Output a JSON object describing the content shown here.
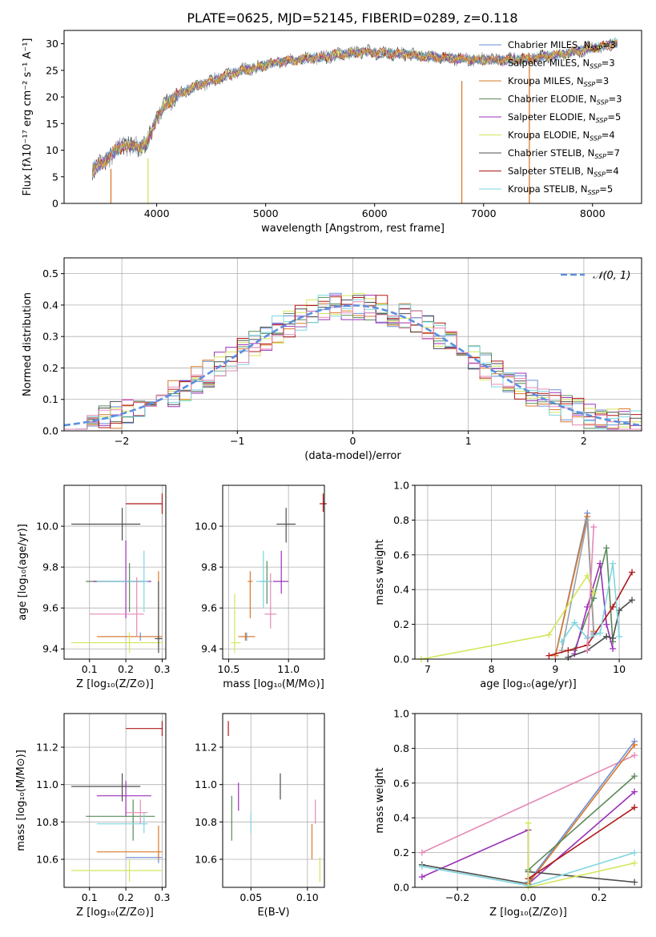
{
  "figure": {
    "title": "PLATE=0625, MJD=52145, FIBERID=0289, z=0.118"
  },
  "colors": {
    "Chabrier MILES": "#6b8fd6",
    "Salpeter MILES": "#9aa0a6",
    "Kroupa MILES": "#d9782a",
    "Chabrier ELODIE": "#5a8a5a",
    "Salpeter ELODIE": "#9b30b8",
    "Kroupa ELODIE": "#d4e65a",
    "Chabrier STELIB": "#4d4d4d",
    "Salpeter STELIB": "#b01818",
    "Kroupa STELIB": "#7fd6e0",
    "Pink": "#e68ab8",
    "Normal": "#5b8fe0"
  },
  "chart_data": [
    {
      "id": "spectrum",
      "type": "line",
      "title": "PLATE=0625, MJD=52145, FIBERID=0289, z=0.118",
      "xlabel": "wavelength [Angstrom, rest frame]",
      "ylabel": "Flux [fλ10⁻¹⁷ erg cm⁻² s⁻¹ A⁻¹]",
      "xlim": [
        3150,
        8450
      ],
      "ylim": [
        0,
        32.5
      ],
      "xticks": [
        "4000",
        "5000",
        "6000",
        "7000",
        "8000"
      ],
      "yticks": [
        "0",
        "5",
        "10",
        "15",
        "20",
        "25",
        "30"
      ],
      "continuum": {
        "x": [
          3410,
          3500,
          3600,
          3700,
          3800,
          3900,
          3950,
          4000,
          4100,
          4200,
          4300,
          4500,
          4700,
          4900,
          5100,
          5300,
          5500,
          5700,
          5900,
          6100,
          6300,
          6500,
          6700,
          6900,
          7100,
          7300,
          7500,
          7700,
          7900,
          8100,
          8230
        ],
        "y": [
          6.5,
          7.5,
          9.5,
          11,
          10.5,
          11,
          13,
          16,
          19,
          20.5,
          21.5,
          23,
          24.5,
          25.5,
          26.5,
          27,
          27.5,
          28,
          28.5,
          28.2,
          28,
          27.5,
          27.3,
          27,
          27,
          27,
          27.5,
          28,
          28.8,
          29.5,
          30.3
        ]
      },
      "series": [
        {
          "name": "Chabrier MILES, N_SSP=3",
          "label_main": "Chabrier MILES, N",
          "label_sub": "SSP",
          "label_tail": "=3"
        },
        {
          "name": "Salpeter MILES, N_SSP=3",
          "label_main": "Salpeter MILES, N",
          "label_sub": "SSP",
          "label_tail": "=3"
        },
        {
          "name": "Kroupa MILES, N_SSP=3",
          "label_main": "Kroupa MILES, N",
          "label_sub": "SSP",
          "label_tail": "=3"
        },
        {
          "name": "Chabrier ELODIE, N_SSP=3",
          "label_main": "Chabrier ELODIE, N",
          "label_sub": "SSP",
          "label_tail": "=3"
        },
        {
          "name": "Salpeter ELODIE, N_SSP=5",
          "label_main": "Salpeter ELODIE, N",
          "label_sub": "SSP",
          "label_tail": "=5"
        },
        {
          "name": "Kroupa ELODIE, N_SSP=4",
          "label_main": "Kroupa ELODIE, N",
          "label_sub": "SSP",
          "label_tail": "=4"
        },
        {
          "name": "Chabrier STELIB, N_SSP=7",
          "label_main": "Chabrier STELIB, N",
          "label_sub": "SSP",
          "label_tail": "=7"
        },
        {
          "name": "Salpeter STELIB, N_SSP=4",
          "label_main": "Salpeter STELIB, N",
          "label_sub": "SSP",
          "label_tail": "=4"
        },
        {
          "name": "Kroupa STELIB, N_SSP=5",
          "label_main": "Kroupa STELIB, N",
          "label_sub": "SSP",
          "label_tail": "=5"
        }
      ],
      "dropouts": [
        {
          "x": 3580,
          "y_top": 6.5,
          "series": "Kroupa MILES"
        },
        {
          "x": 3920,
          "y_top": 8.5,
          "series": "Kroupa ELODIE"
        },
        {
          "x": 6800,
          "y_top": 23,
          "series": "Kroupa MILES"
        },
        {
          "x": 7420,
          "y_top": 28,
          "series": "Kroupa MILES"
        }
      ],
      "legend": "upper right"
    },
    {
      "id": "residuals",
      "type": "histogram",
      "xlabel": "(data-model)/error",
      "ylabel": "Normed distribution",
      "xlim": [
        -2.5,
        2.5
      ],
      "ylim": [
        0,
        0.55
      ],
      "xticks": [
        "−2",
        "−1",
        "0",
        "1",
        "2"
      ],
      "yticks": [
        "0.0",
        "0.1",
        "0.2",
        "0.3",
        "0.4",
        "0.5"
      ],
      "normal_label": "𝒩(0, 1)",
      "legend": "upper right",
      "grid": true
    },
    {
      "id": "age-vs-Z",
      "type": "scatter",
      "xlabel": "Z [log₁₀(Z/Z⊙)]",
      "ylabel": "age  [log₁₀(age/yr)]",
      "xlim": [
        0.03,
        0.31
      ],
      "ylim": [
        9.35,
        10.2
      ],
      "xticks": [
        "0.1",
        "0.2",
        "0.3"
      ],
      "yticks": [
        "9.4",
        "9.6",
        "9.8",
        "10.0"
      ],
      "points": [
        {
          "series": "Chabrier MILES",
          "x": 0.24,
          "y": 9.46,
          "xerr": [
            0.13,
            0.3
          ],
          "yerr": [
            9.44,
            9.48
          ]
        },
        {
          "series": "Kroupa MILES",
          "x": 0.29,
          "y": 9.46,
          "xerr": [
            0.12,
            0.3
          ],
          "yerr": [
            9.41,
            9.78
          ]
        },
        {
          "series": "Chabrier ELODIE",
          "x": 0.21,
          "y": 9.73,
          "xerr": [
            0.09,
            0.25
          ],
          "yerr": [
            9.58,
            9.82
          ]
        },
        {
          "series": "Salpeter ELODIE",
          "x": 0.2,
          "y": 9.73,
          "xerr": [
            0.11,
            0.27
          ],
          "yerr": [
            9.55,
            9.93
          ]
        },
        {
          "series": "Kroupa ELODIE",
          "x": 0.21,
          "y": 9.43,
          "xerr": [
            0.05,
            0.3
          ],
          "yerr": [
            9.38,
            9.48
          ]
        },
        {
          "series": "Chabrier STELIB",
          "x": 0.19,
          "y": 10.01,
          "xerr": [
            0.05,
            0.24
          ],
          "yerr": [
            9.93,
            10.09
          ]
        },
        {
          "series": "Salpeter STELIB",
          "x": 0.3,
          "y": 10.11,
          "xerr": [
            0.2,
            0.3
          ],
          "yerr": [
            10.06,
            10.16
          ]
        },
        {
          "series": "Kroupa STELIB",
          "x": 0.25,
          "y": 9.73,
          "xerr": [
            0.12,
            0.26
          ],
          "yerr": [
            9.58,
            9.88
          ]
        },
        {
          "series": "Pink",
          "x": 0.23,
          "y": 9.57,
          "xerr": [
            0.1,
            0.25
          ],
          "yerr": [
            9.46,
            9.75
          ]
        },
        {
          "series": "Chabrier STELIB",
          "x": 0.29,
          "y": 9.45,
          "xerr": [
            0.28,
            0.3
          ],
          "yerr": [
            9.38,
            9.73
          ]
        }
      ]
    },
    {
      "id": "age-vs-mass",
      "type": "scatter",
      "xlabel": "mass [log₁₀(M/M⊙)]",
      "ylabel": "",
      "xlim": [
        10.45,
        11.3
      ],
      "ylim": [
        9.35,
        10.2
      ],
      "xticks": [
        "10.5",
        "11.0"
      ],
      "yticks": [
        "9.4",
        "9.6",
        "9.8",
        "10.0"
      ],
      "points": [
        {
          "series": "Kroupa ELODIE",
          "x": 10.55,
          "y": 9.43,
          "xerr": [
            10.52,
            10.6
          ],
          "yerr": [
            9.38,
            9.67
          ]
        },
        {
          "series": "Chabrier MILES",
          "x": 10.65,
          "y": 9.46,
          "xerr": [
            10.6,
            10.72
          ],
          "yerr": [
            9.44,
            9.48
          ]
        },
        {
          "series": "Kroupa MILES",
          "x": 10.64,
          "y": 9.46,
          "xerr": [
            10.58,
            10.72
          ],
          "yerr": [
            9.44,
            9.48
          ]
        },
        {
          "series": "Chabrier ELODIE",
          "x": 10.82,
          "y": 9.73,
          "xerr": [
            10.76,
            10.86
          ],
          "yerr": [
            9.62,
            9.83
          ]
        },
        {
          "series": "Kroupa STELIB",
          "x": 10.79,
          "y": 9.73,
          "xerr": [
            10.73,
            10.85
          ],
          "yerr": [
            9.6,
            9.88
          ]
        },
        {
          "series": "Salpeter ELODIE",
          "x": 10.94,
          "y": 9.73,
          "xerr": [
            10.87,
            11.0
          ],
          "yerr": [
            9.67,
            9.88
          ]
        },
        {
          "series": "Pink",
          "x": 10.85,
          "y": 9.57,
          "xerr": [
            10.8,
            10.9
          ],
          "yerr": [
            9.5,
            9.77
          ]
        },
        {
          "series": "Chabrier STELIB",
          "x": 10.98,
          "y": 10.01,
          "xerr": [
            10.9,
            11.06
          ],
          "yerr": [
            9.92,
            10.09
          ]
        },
        {
          "series": "Salpeter STELIB",
          "x": 11.29,
          "y": 10.11,
          "xerr": [
            11.26,
            11.32
          ],
          "yerr": [
            10.07,
            10.16
          ]
        },
        {
          "series": "Kroupa MILES",
          "x": 10.68,
          "y": 9.73,
          "xerr": [
            10.66,
            10.7
          ],
          "yerr": [
            9.55,
            9.78
          ]
        }
      ]
    },
    {
      "id": "mass-weight-vs-age",
      "type": "line",
      "xlabel": "age  [log₁₀(age/yr)]",
      "ylabel": "mass weight",
      "xlim": [
        6.8,
        10.35
      ],
      "ylim": [
        0,
        1
      ],
      "xticks": [
        "7",
        "8",
        "9",
        "10"
      ],
      "yticks": [
        "0.0",
        "0.2",
        "0.4",
        "0.6",
        "0.8",
        "1.0"
      ],
      "grid": true,
      "series": [
        {
          "name": "Chabrier MILES",
          "x": [
            9.0,
            9.5,
            9.6
          ],
          "y": [
            0.02,
            0.84,
            0.15
          ]
        },
        {
          "name": "Kroupa MILES",
          "x": [
            9.0,
            9.5,
            9.6
          ],
          "y": [
            0.02,
            0.82,
            0.16
          ]
        },
        {
          "name": "Salpeter MILES",
          "x": [
            9.1,
            9.5,
            9.6
          ],
          "y": [
            0.05,
            0.8,
            0.14
          ]
        },
        {
          "name": "Chabrier ELODIE",
          "x": [
            9.3,
            9.6,
            9.8,
            9.9
          ],
          "y": [
            0.05,
            0.35,
            0.64,
            0.1
          ]
        },
        {
          "name": "Salpeter ELODIE",
          "x": [
            9.3,
            9.5,
            9.7,
            9.8,
            9.9
          ],
          "y": [
            0.03,
            0.3,
            0.55,
            0.2,
            0.06
          ]
        },
        {
          "name": "Kroupa ELODIE",
          "x": [
            6.9,
            8.9,
            9.5,
            9.6
          ],
          "y": [
            0.0,
            0.14,
            0.48,
            0.38
          ]
        },
        {
          "name": "Chabrier STELIB",
          "x": [
            9.2,
            9.5,
            9.8,
            9.9,
            10.0,
            10.2
          ],
          "y": [
            0.01,
            0.05,
            0.13,
            0.12,
            0.28,
            0.34
          ]
        },
        {
          "name": "Salpeter STELIB",
          "x": [
            8.9,
            9.2,
            9.5,
            9.9,
            10.2
          ],
          "y": [
            0.02,
            0.05,
            0.08,
            0.3,
            0.5
          ]
        },
        {
          "name": "Kroupa STELIB",
          "x": [
            9.1,
            9.3,
            9.5,
            9.7,
            9.9,
            10.0
          ],
          "y": [
            0.1,
            0.21,
            0.12,
            0.15,
            0.55,
            0.13
          ]
        },
        {
          "name": "Pink",
          "x": [
            9.5,
            9.6
          ],
          "y": [
            0.05,
            0.76
          ]
        }
      ]
    },
    {
      "id": "mass-vs-Z",
      "type": "scatter",
      "xlabel": "Z [log₁₀(Z/Z⊙)]",
      "ylabel": "mass [log₁₀(M/M⊙)]",
      "xlim": [
        0.03,
        0.31
      ],
      "ylim": [
        10.45,
        11.38
      ],
      "xticks": [
        "0.1",
        "0.2",
        "0.3"
      ],
      "yticks": [
        "10.6",
        "10.8",
        "11.0",
        "11.2"
      ],
      "points": [
        {
          "series": "Kroupa ELODIE",
          "x": 0.21,
          "y": 10.54,
          "xerr": [
            0.05,
            0.3
          ],
          "yerr": [
            10.48,
            10.6
          ]
        },
        {
          "series": "Chabrier MILES",
          "x": 0.29,
          "y": 10.61,
          "xerr": [
            0.2,
            0.3
          ],
          "yerr": [
            10.58,
            10.64
          ]
        },
        {
          "series": "Kroupa MILES",
          "x": 0.29,
          "y": 10.64,
          "xerr": [
            0.12,
            0.3
          ],
          "yerr": [
            10.6,
            10.78
          ]
        },
        {
          "series": "Chabrier ELODIE",
          "x": 0.22,
          "y": 10.83,
          "xerr": [
            0.09,
            0.28
          ],
          "yerr": [
            10.7,
            10.92
          ]
        },
        {
          "series": "Kroupa STELIB",
          "x": 0.25,
          "y": 10.79,
          "xerr": [
            0.12,
            0.26
          ],
          "yerr": [
            10.74,
            10.85
          ]
        },
        {
          "series": "Pink",
          "x": 0.24,
          "y": 10.85,
          "xerr": [
            0.2,
            0.26
          ],
          "yerr": [
            10.79,
            10.92
          ]
        },
        {
          "series": "Salpeter ELODIE",
          "x": 0.2,
          "y": 10.94,
          "xerr": [
            0.12,
            0.27
          ],
          "yerr": [
            10.83,
            11.02
          ]
        },
        {
          "series": "Chabrier STELIB",
          "x": 0.19,
          "y": 10.99,
          "xerr": [
            0.05,
            0.24
          ],
          "yerr": [
            10.91,
            11.06
          ]
        },
        {
          "series": "Salpeter STELIB",
          "x": 0.3,
          "y": 11.3,
          "xerr": [
            0.2,
            0.3
          ],
          "yerr": [
            11.26,
            11.34
          ]
        }
      ]
    },
    {
      "id": "mass-vs-EBV",
      "type": "scatter",
      "xlabel": "E(B-V)",
      "ylabel": "",
      "xlim": [
        0.025,
        0.115
      ],
      "ylim": [
        10.45,
        11.38
      ],
      "xticks": [
        "0.05",
        "0.10"
      ],
      "yticks": [
        "10.6",
        "10.8",
        "11.0",
        "11.2"
      ],
      "points": [
        {
          "series": "Salpeter STELIB",
          "x": 0.03,
          "y": 11.3,
          "yerr": [
            11.26,
            11.34
          ]
        },
        {
          "series": "Chabrier ELODIE",
          "x": 0.033,
          "y": 10.82,
          "yerr": [
            10.7,
            10.94
          ]
        },
        {
          "series": "Salpeter ELODIE",
          "x": 0.039,
          "y": 10.94,
          "yerr": [
            10.86,
            11.01
          ]
        },
        {
          "series": "Kroupa STELIB",
          "x": 0.05,
          "y": 10.79,
          "yerr": [
            10.74,
            10.85
          ]
        },
        {
          "series": "Chabrier STELIB",
          "x": 0.076,
          "y": 10.99,
          "yerr": [
            10.92,
            11.06
          ]
        },
        {
          "series": "Kroupa MILES",
          "x": 0.104,
          "y": 10.7,
          "yerr": [
            10.6,
            10.79
          ]
        },
        {
          "series": "Pink",
          "x": 0.107,
          "y": 10.85,
          "yerr": [
            10.79,
            10.92
          ]
        },
        {
          "series": "Kroupa ELODIE",
          "x": 0.111,
          "y": 10.54,
          "yerr": [
            10.48,
            10.61
          ]
        }
      ]
    },
    {
      "id": "mass-weight-vs-Z",
      "type": "line",
      "xlabel": "Z [log₁₀(Z/Z⊙)]",
      "ylabel": "mass weight",
      "xlim": [
        -0.32,
        0.32
      ],
      "ylim": [
        0,
        1
      ],
      "xticks": [
        "−0.2",
        "0.0",
        "0.2"
      ],
      "yticks": [
        "0.0",
        "0.2",
        "0.4",
        "0.6",
        "0.8",
        "1.0"
      ],
      "grid": true,
      "series": [
        {
          "name": "Pink",
          "x": [
            -0.3,
            0.3
          ],
          "y": [
            0.2,
            0.76
          ]
        },
        {
          "name": "Salpeter ELODIE",
          "x": [
            -0.3,
            0.0,
            0.0,
            0.3
          ],
          "y": [
            0.06,
            0.33,
            0.02,
            0.55
          ]
        },
        {
          "name": "Chabrier STELIB",
          "x": [
            -0.3,
            0.0,
            0.0,
            0.3
          ],
          "y": [
            0.13,
            0.02,
            0.09,
            0.03
          ]
        },
        {
          "name": "Kroupa STELIB",
          "x": [
            -0.3,
            0.0,
            0.3
          ],
          "y": [
            0.12,
            0.01,
            0.2
          ]
        },
        {
          "name": "Chabrier MILES",
          "x": [
            0.0,
            0.3
          ],
          "y": [
            0.03,
            0.84
          ]
        },
        {
          "name": "Kroupa MILES",
          "x": [
            0.0,
            0.3
          ],
          "y": [
            0.02,
            0.82
          ]
        },
        {
          "name": "Chabrier ELODIE",
          "x": [
            0.0,
            0.3
          ],
          "y": [
            0.1,
            0.64
          ]
        },
        {
          "name": "Salpeter STELIB",
          "x": [
            0.0,
            0.3
          ],
          "y": [
            0.05,
            0.46
          ]
        },
        {
          "name": "Kroupa ELODIE",
          "x": [
            0.0,
            0.0,
            0.3
          ],
          "y": [
            0.37,
            0.0,
            0.14
          ]
        }
      ]
    }
  ]
}
